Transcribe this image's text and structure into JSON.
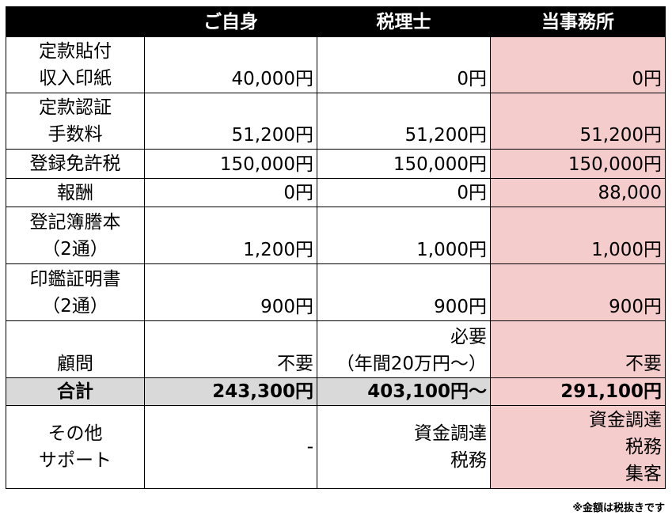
{
  "header": {
    "col1": "ご自身",
    "col2": "税理士",
    "col3": "当事務所"
  },
  "rows": [
    {
      "label": [
        "定款貼付",
        "収入印紙"
      ],
      "values": [
        [
          "40,000円"
        ],
        [
          "0円"
        ],
        [
          "0円"
        ]
      ]
    },
    {
      "label": [
        "定款認証",
        "手数料"
      ],
      "values": [
        [
          "51,200円"
        ],
        [
          "51,200円"
        ],
        [
          "51,200円"
        ]
      ]
    },
    {
      "label": [
        "登録免許税"
      ],
      "values": [
        [
          "150,000円"
        ],
        [
          "150,000円"
        ],
        [
          "150,000円"
        ]
      ]
    },
    {
      "label": [
        "報酬"
      ],
      "values": [
        [
          "0円"
        ],
        [
          "0円"
        ],
        [
          "88,000"
        ]
      ]
    },
    {
      "label": [
        "登記簿謄本",
        "（2通）"
      ],
      "values": [
        [
          "1,200円"
        ],
        [
          "1,000円"
        ],
        [
          "1,000円"
        ]
      ]
    },
    {
      "label": [
        "印鑑証明書",
        "（2通）"
      ],
      "values": [
        [
          "900円"
        ],
        [
          "900円"
        ],
        [
          "900円"
        ]
      ]
    },
    {
      "label": [
        "顧問"
      ],
      "values": [
        [
          "不要"
        ],
        [
          "必要",
          "（年間20万円～）"
        ],
        [
          "不要"
        ]
      ]
    }
  ],
  "total": {
    "label": "合計",
    "values": [
      "243,300円",
      "403,100円～",
      "291,100円"
    ]
  },
  "other": {
    "label": [
      "その他",
      "サポート"
    ],
    "values": [
      [
        "-"
      ],
      [
        "資金調達",
        "税務"
      ],
      [
        "資金調達",
        "税務",
        "集客"
      ]
    ]
  },
  "footnote": "※金額は税抜きです",
  "colors": {
    "header_bg": "#000000",
    "highlight": "#f5cccc",
    "total_bg": "#d9d9d9"
  }
}
